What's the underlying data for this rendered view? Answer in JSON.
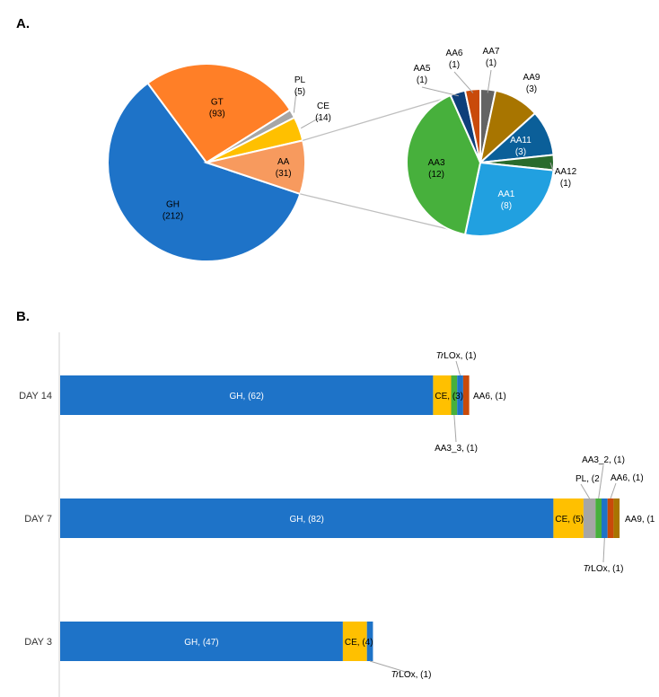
{
  "panels": {
    "a": "A.",
    "b": "B."
  },
  "chart_data": [
    {
      "type": "pie",
      "slices": [
        {
          "label": "GH",
          "value": 212,
          "value_text": "(212)",
          "color": "#1E73C8"
        },
        {
          "label": "GT",
          "value": 93,
          "value_text": "(93)",
          "color": "#FF7F27"
        },
        {
          "label": "PL",
          "value": 5,
          "value_text": "(5)",
          "color": "#A6A6A6"
        },
        {
          "label": "CE",
          "value": 14,
          "value_text": "(14)",
          "color": "#FFC000"
        },
        {
          "label": "AA",
          "value": 31,
          "value_text": "(31)",
          "color": "#F79A5E"
        }
      ]
    },
    {
      "type": "pie",
      "slices": [
        {
          "label": "AA7",
          "value": 1,
          "value_text": "(1)",
          "color": "#636363"
        },
        {
          "label": "AA9",
          "value": 3,
          "value_text": "(3)",
          "color": "#A87500"
        },
        {
          "label": "AA11",
          "value": 3,
          "value_text": "(3)",
          "color": "#0B5F99"
        },
        {
          "label": "AA12",
          "value": 1,
          "value_text": "(1)",
          "color": "#2A6B2C"
        },
        {
          "label": "AA1",
          "value": 8,
          "value_text": "(8)",
          "color": "#21A0E0"
        },
        {
          "label": "AA3",
          "value": 12,
          "value_text": "(12)",
          "color": "#47B03C"
        },
        {
          "label": "AA5",
          "value": 1,
          "value_text": "(1)",
          "color": "#0E3F7A"
        },
        {
          "label": "AA6",
          "value": 1,
          "value_text": "(1)",
          "color": "#C94A0A"
        }
      ]
    },
    {
      "type": "bar",
      "orientation": "horizontal",
      "stacked": true,
      "categories": [
        "DAY 14",
        "DAY 7",
        "DAY 3"
      ],
      "rows": [
        {
          "day": "DAY 14",
          "segments": [
            {
              "name": "GH",
              "value": 62,
              "label": "GH, (62)",
              "color": "#1E73C8"
            },
            {
              "name": "CE",
              "value": 3,
              "label": "CE, (3)",
              "color": "#FFC000"
            },
            {
              "name": "AA3_3",
              "value": 1,
              "label": "AA3_3, (1)",
              "color": "#47B03C"
            },
            {
              "name": "TrLOx",
              "value": 1,
              "label_pre": "Tr",
              "label_post": "LOx, (1)",
              "color": "#1E73C8"
            },
            {
              "name": "AA6",
              "value": 1,
              "label": "AA6, (1)",
              "color": "#C94A0A"
            }
          ]
        },
        {
          "day": "DAY 7",
          "segments": [
            {
              "name": "GH",
              "value": 82,
              "label": "GH, (82)",
              "color": "#1E73C8"
            },
            {
              "name": "CE",
              "value": 5,
              "label": "CE, (5)",
              "color": "#FFC000"
            },
            {
              "name": "PL",
              "value": 2,
              "label": "PL, (2",
              "color": "#A6A6A6"
            },
            {
              "name": "AA3_2",
              "value": 1,
              "label": "AA3_2, (1)",
              "color": "#47B03C"
            },
            {
              "name": "TrLOx",
              "value": 1,
              "label_pre": "Tr",
              "label_post": "LOx, (1)",
              "color": "#1E73C8"
            },
            {
              "name": "AA6",
              "value": 1,
              "label": "AA6, (1)",
              "color": "#C94A0A"
            },
            {
              "name": "AA9",
              "value": 1,
              "label": "AA9, (1",
              "color": "#A87500"
            }
          ]
        },
        {
          "day": "DAY 3",
          "segments": [
            {
              "name": "GH",
              "value": 47,
              "label": "GH, (47)",
              "color": "#1E73C8"
            },
            {
              "name": "CE",
              "value": 4,
              "label": "CE, (4)",
              "color": "#FFC000"
            },
            {
              "name": "TrLOx",
              "value": 1,
              "label_pre": "Tr",
              "label_post": "LOx, (1)",
              "color": "#1E73C8"
            }
          ]
        }
      ]
    }
  ]
}
